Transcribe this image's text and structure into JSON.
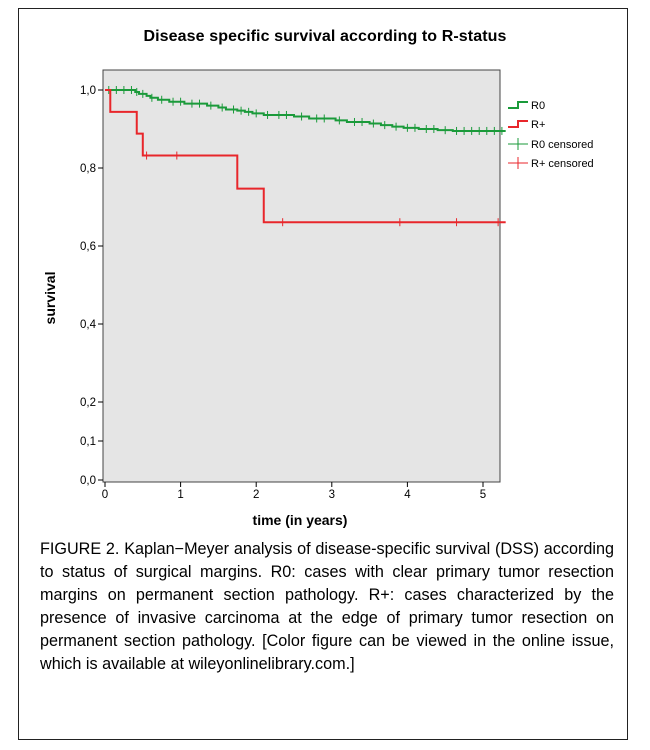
{
  "figure": {
    "caption": "FIGURE 2. Kaplan−Meyer analysis of disease-specific survival (DSS) according to status of surgical margins. R0: cases with clear primary tumor resection margins on permanent section pathology. R+: cases characterized by the presence of invasive carcinoma at the edge of primary tumor resection on permanent section pathology. [Color figure can be viewed in the online issue, which is available at wileyonlinelibrary.com.]"
  },
  "chart_data": {
    "type": "line",
    "title": "Disease specific survival according to R-status",
    "xlabel": "time (in years)",
    "ylabel": "survival",
    "xlim": [
      0,
      5.3
    ],
    "ylim": [
      0,
      1.05
    ],
    "x_ticks": [
      "0",
      "1",
      "2",
      "3",
      "4",
      "5"
    ],
    "y_ticks": [
      "0,0",
      "0,1",
      "0,2",
      "0,4",
      "0,6",
      "0,8",
      "1,0"
    ],
    "y_tick_values": [
      0.0,
      0.1,
      0.2,
      0.4,
      0.6,
      0.8,
      1.0
    ],
    "legend": [
      "R0",
      "R+",
      "R0 censored",
      "R+ censored"
    ],
    "legend_position": "right",
    "colors": {
      "R0": "#1a9a3a",
      "Rplus": "#e8262b"
    },
    "series": [
      {
        "name": "R0",
        "step_x": [
          0,
          0.4,
          0.45,
          0.55,
          0.6,
          0.7,
          0.85,
          1.05,
          1.35,
          1.5,
          1.6,
          1.75,
          1.85,
          1.95,
          2.1,
          2.5,
          2.7,
          3.05,
          3.2,
          3.5,
          3.65,
          3.8,
          3.95,
          4.15,
          4.4,
          4.6,
          5.3
        ],
        "step_y": [
          1.0,
          0.995,
          0.99,
          0.985,
          0.98,
          0.975,
          0.97,
          0.965,
          0.96,
          0.955,
          0.95,
          0.947,
          0.944,
          0.94,
          0.936,
          0.932,
          0.927,
          0.922,
          0.918,
          0.914,
          0.91,
          0.906,
          0.903,
          0.9,
          0.897,
          0.895,
          0.895
        ],
        "censored_x": [
          0.05,
          0.15,
          0.25,
          0.35,
          0.42,
          0.5,
          0.62,
          0.75,
          0.9,
          1.0,
          1.15,
          1.25,
          1.4,
          1.55,
          1.7,
          1.8,
          1.9,
          2.0,
          2.15,
          2.3,
          2.4,
          2.6,
          2.8,
          2.9,
          3.1,
          3.3,
          3.4,
          3.55,
          3.7,
          3.85,
          4.0,
          4.1,
          4.25,
          4.35,
          4.5,
          4.65,
          4.75,
          4.85,
          4.95,
          5.05,
          5.15,
          5.25
        ]
      },
      {
        "name": "R+",
        "step_x": [
          0,
          0.07,
          0.42,
          0.5,
          1.75,
          2.1,
          5.3
        ],
        "step_y": [
          1.0,
          0.944,
          0.888,
          0.832,
          0.747,
          0.661,
          0.661
        ],
        "censored_x": [
          0.55,
          0.95,
          2.35,
          3.9,
          4.65,
          5.2
        ]
      }
    ]
  }
}
